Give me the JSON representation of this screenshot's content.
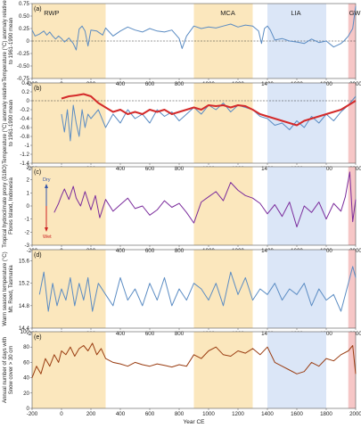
{
  "colors": {
    "rwp": "#fbe7bd",
    "mca": "#fbe7bd",
    "lia": "#dbe6f7",
    "gw": "#f6c6c6",
    "blue": "#5b8cc3",
    "red": "#d42a2a",
    "purple": "#7b2c9c",
    "brown": "#9a3d12",
    "arrow_dry": "#3355aa",
    "arrow_wet": "#cc2222"
  },
  "periods": [
    {
      "label": "RWP",
      "start": -200,
      "end": 300,
      "color_key": "rwp"
    },
    {
      "label": "MCA",
      "start": 900,
      "end": 1300,
      "color_key": "mca"
    },
    {
      "label": "LIA",
      "start": 1400,
      "end": 1800,
      "color_key": "lia"
    },
    {
      "label": "GW",
      "start": 1950,
      "end": 2000,
      "color_key": "gw"
    }
  ],
  "x_axis": {
    "label": "Year CE",
    "ticks": [
      "-200",
      "0",
      "200",
      "400",
      "600",
      "800",
      "1000",
      "1200",
      "1400",
      "1600",
      "1800",
      "2000"
    ]
  },
  "chart_data": [
    {
      "type": "line",
      "panel": "(a)",
      "ylabel": "Temperature (°C) anomaly relative to 1961-1990 mean",
      "ylim": [
        -0.75,
        0.75
      ],
      "yticks": [
        "0.75",
        "0.50",
        "0.25",
        "0",
        "-0.25",
        "-0.50",
        "-0.75"
      ],
      "zero_line": true,
      "series": [
        {
          "color_key": "blue",
          "x": [
            -200,
            -180,
            -150,
            -120,
            -100,
            -80,
            -60,
            -40,
            -20,
            0,
            20,
            50,
            80,
            100,
            120,
            140,
            160,
            180,
            200,
            240,
            280,
            300,
            350,
            400,
            450,
            500,
            550,
            600,
            650,
            700,
            750,
            800,
            820,
            850,
            880,
            900,
            950,
            1000,
            1050,
            1100,
            1150,
            1200,
            1250,
            1300,
            1340,
            1360,
            1380,
            1400,
            1420,
            1450,
            1500,
            1550,
            1600,
            1650,
            1700,
            1750,
            1800,
            1850,
            1900,
            1920,
            1950,
            1980,
            2000
          ],
          "y": [
            0.22,
            0.1,
            0.14,
            0.2,
            0.12,
            0.18,
            0.1,
            0.04,
            0.1,
            0.05,
            -0.02,
            0.06,
            -0.05,
            -0.18,
            0.24,
            0.3,
            0.2,
            -0.1,
            0.22,
            0.2,
            0.12,
            0.26,
            0.1,
            0.2,
            0.28,
            0.22,
            0.18,
            0.25,
            0.2,
            0.18,
            0.22,
            0.05,
            -0.15,
            0.1,
            0.22,
            0.3,
            0.25,
            0.28,
            0.26,
            0.3,
            0.34,
            0.28,
            0.32,
            0.3,
            0.2,
            -0.05,
            0.25,
            0.3,
            0.22,
            0.02,
            0.05,
            0.0,
            -0.02,
            -0.05,
            0.04,
            -0.03,
            0.0,
            -0.12,
            -0.05,
            0.0,
            0.1,
            0.25,
            0.7
          ]
        }
      ]
    },
    {
      "type": "line",
      "panel": "(b)",
      "ylabel": "Temperature (°C) anomaly relative to 1961-1990 mean",
      "ylim": [
        -1.4,
        0.4
      ],
      "yticks": [
        "0.4",
        "0.2",
        "0",
        "-0.2",
        "-0.4",
        "-0.6",
        "-0.8",
        "-1",
        "-1.2",
        "-1.4"
      ],
      "zero_line": true,
      "series": [
        {
          "color_key": "blue",
          "x": [
            0,
            20,
            40,
            60,
            80,
            100,
            120,
            140,
            160,
            180,
            200,
            250,
            300,
            350,
            400,
            450,
            500,
            550,
            600,
            650,
            700,
            750,
            800,
            850,
            900,
            950,
            1000,
            1050,
            1100,
            1150,
            1200,
            1250,
            1300,
            1350,
            1400,
            1450,
            1500,
            1550,
            1600,
            1650,
            1700,
            1750,
            1800,
            1850,
            1900,
            1950,
            2000
          ],
          "y": [
            -0.3,
            -0.7,
            -0.2,
            -0.9,
            -0.1,
            -0.5,
            -0.8,
            -0.2,
            -0.6,
            -0.3,
            -0.4,
            -0.2,
            -0.6,
            -0.3,
            -0.5,
            -0.2,
            -0.4,
            -0.3,
            -0.5,
            -0.2,
            -0.35,
            -0.25,
            -0.45,
            -0.3,
            -0.15,
            -0.3,
            -0.1,
            -0.2,
            -0.05,
            -0.25,
            -0.1,
            -0.15,
            -0.2,
            -0.35,
            -0.4,
            -0.55,
            -0.5,
            -0.65,
            -0.45,
            -0.6,
            -0.35,
            -0.5,
            -0.3,
            -0.45,
            -0.25,
            -0.1,
            0.1
          ]
        },
        {
          "color_key": "red",
          "x": [
            0,
            50,
            100,
            150,
            200,
            250,
            300,
            350,
            400,
            450,
            500,
            550,
            600,
            650,
            700,
            750,
            800,
            850,
            900,
            950,
            1000,
            1050,
            1100,
            1150,
            1200,
            1250,
            1300,
            1350,
            1400,
            1450,
            1500,
            1550,
            1600,
            1650,
            1700,
            1750,
            1800,
            1850,
            1900,
            1950,
            2000
          ],
          "y": [
            0.05,
            0.1,
            0.12,
            0.15,
            0.1,
            -0.05,
            -0.15,
            -0.25,
            -0.2,
            -0.3,
            -0.25,
            -0.3,
            -0.2,
            -0.25,
            -0.2,
            -0.3,
            -0.25,
            -0.2,
            -0.15,
            -0.2,
            -0.1,
            -0.12,
            -0.1,
            -0.15,
            -0.1,
            -0.12,
            -0.2,
            -0.3,
            -0.35,
            -0.4,
            -0.45,
            -0.5,
            -0.55,
            -0.45,
            -0.4,
            -0.35,
            -0.3,
            -0.25,
            -0.2,
            -0.1,
            0.0
          ]
        }
      ]
    },
    {
      "type": "line",
      "panel": "(c)",
      "ylabel": "Tropical hydroclimate proxy (δ18O) Flores Island, Indonesia",
      "ylim": [
        -3,
        3
      ],
      "yticks": [
        "3",
        "2",
        "1",
        "0",
        "-1",
        "-2",
        "-3"
      ],
      "zero_line": false,
      "arrows": {
        "dry": "Dry",
        "wet": "Wet"
      },
      "series": [
        {
          "color_key": "purple",
          "x": [
            -50,
            -20,
            0,
            20,
            50,
            80,
            100,
            130,
            160,
            200,
            230,
            260,
            300,
            350,
            400,
            450,
            500,
            550,
            600,
            650,
            700,
            750,
            800,
            850,
            900,
            950,
            1000,
            1050,
            1100,
            1150,
            1200,
            1250,
            1300,
            1350,
            1400,
            1450,
            1500,
            1550,
            1600,
            1650,
            1700,
            1750,
            1800,
            1850,
            1900,
            1930,
            1960,
            1980,
            2000
          ],
          "y": [
            -0.5,
            0.2,
            0.8,
            1.3,
            0.5,
            1.5,
            0.6,
            0.0,
            1.1,
            -0.3,
            0.8,
            -0.9,
            0.5,
            -0.4,
            0.1,
            0.6,
            -0.2,
            0.0,
            -0.7,
            -0.3,
            0.4,
            -0.1,
            0.2,
            -0.5,
            -1.3,
            0.3,
            0.7,
            1.1,
            0.4,
            1.8,
            1.2,
            0.8,
            0.6,
            0.2,
            -0.6,
            0.1,
            -0.8,
            0.3,
            -1.6,
            0.0,
            -0.5,
            0.3,
            -1.0,
            0.2,
            -0.4,
            0.7,
            2.6,
            -1.2,
            0.5
          ]
        }
      ]
    },
    {
      "type": "line",
      "panel": "(d)",
      "ylabel": "Warm season temperature (°C) Mt. Reed, Tasmania",
      "ylim": [
        14.4,
        15.8
      ],
      "yticks": [
        "15.6",
        "15.2",
        "14.8",
        "14.4"
      ],
      "zero_line": false,
      "series": [
        {
          "color_key": "blue",
          "x": [
            -150,
            -120,
            -90,
            -60,
            -30,
            0,
            30,
            60,
            90,
            120,
            150,
            180,
            210,
            250,
            300,
            350,
            400,
            450,
            500,
            550,
            600,
            650,
            700,
            750,
            800,
            850,
            900,
            950,
            1000,
            1050,
            1100,
            1150,
            1200,
            1250,
            1300,
            1350,
            1400,
            1450,
            1500,
            1550,
            1600,
            1650,
            1700,
            1750,
            1800,
            1850,
            1900,
            1950,
            1980,
            2000
          ],
          "y": [
            15.0,
            15.4,
            14.7,
            15.2,
            14.8,
            15.1,
            14.9,
            15.3,
            14.8,
            15.2,
            14.9,
            15.3,
            14.7,
            15.2,
            15.0,
            14.8,
            15.3,
            14.9,
            15.1,
            14.8,
            15.2,
            14.9,
            15.3,
            14.8,
            15.1,
            14.9,
            15.2,
            15.1,
            14.9,
            15.2,
            14.8,
            15.4,
            15.0,
            15.3,
            14.9,
            15.1,
            15.0,
            15.2,
            14.9,
            15.1,
            15.0,
            15.2,
            14.8,
            15.1,
            14.9,
            15.0,
            14.7,
            15.2,
            15.5,
            15.3
          ]
        }
      ]
    },
    {
      "type": "line",
      "panel": "(e)",
      "ylabel": "Annual number of days with Snow cover > 30 cm",
      "ylim": [
        0,
        100
      ],
      "yticks": [
        "100",
        "80",
        "60",
        "40",
        "20",
        "0"
      ],
      "zero_line": false,
      "series": [
        {
          "color_key": "brown",
          "x": [
            -200,
            -170,
            -140,
            -110,
            -80,
            -50,
            -20,
            0,
            30,
            60,
            90,
            120,
            150,
            180,
            210,
            240,
            270,
            300,
            350,
            400,
            450,
            500,
            550,
            600,
            650,
            700,
            750,
            800,
            850,
            900,
            950,
            1000,
            1050,
            1100,
            1150,
            1200,
            1250,
            1300,
            1350,
            1400,
            1450,
            1500,
            1550,
            1600,
            1650,
            1700,
            1750,
            1800,
            1850,
            1900,
            1950,
            1980,
            2000
          ],
          "y": [
            40,
            55,
            45,
            65,
            55,
            70,
            60,
            75,
            70,
            80,
            68,
            78,
            82,
            75,
            85,
            70,
            78,
            65,
            60,
            58,
            55,
            60,
            57,
            55,
            58,
            56,
            54,
            57,
            55,
            70,
            65,
            75,
            80,
            70,
            68,
            75,
            72,
            78,
            70,
            80,
            60,
            55,
            50,
            45,
            48,
            60,
            55,
            65,
            62,
            70,
            75,
            82,
            45
          ]
        }
      ]
    }
  ]
}
